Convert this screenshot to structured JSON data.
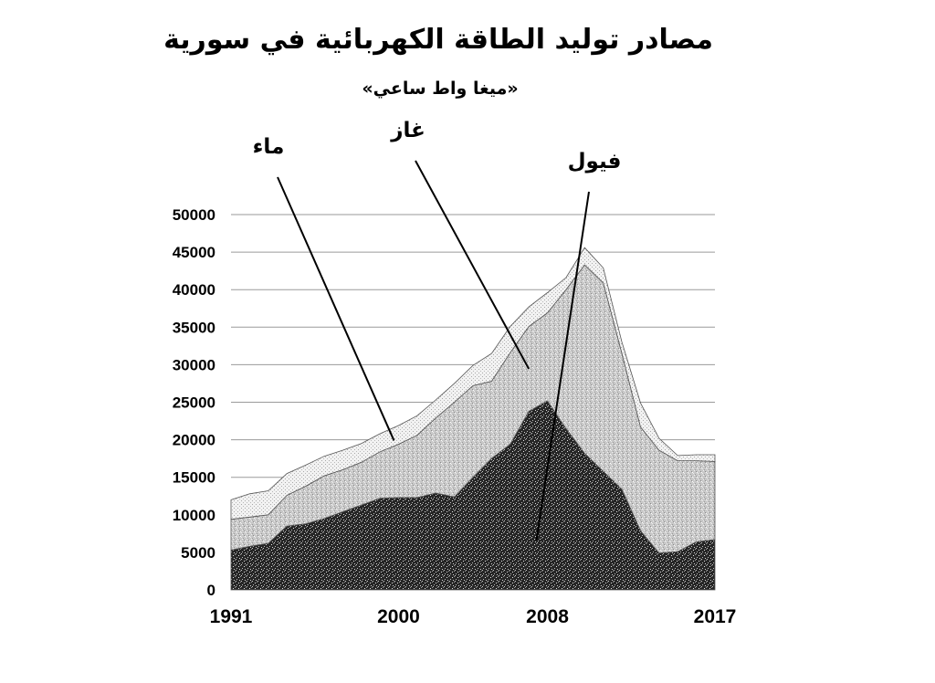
{
  "chart_data": {
    "type": "area",
    "stacked": true,
    "title": "مصادر توليد الطاقة الكهربائية في سورية",
    "subtitle": "«ميغا واط ساعي»",
    "xlabel": "",
    "ylabel": "",
    "ylim": [
      0,
      50000
    ],
    "xlim": [
      1991,
      2017
    ],
    "yticks": [
      0,
      5000,
      10000,
      15000,
      20000,
      25000,
      30000,
      35000,
      40000,
      45000,
      50000
    ],
    "xtick_labels": [
      "1991",
      "2000",
      "2008",
      "2017"
    ],
    "grid": true,
    "legend": "none",
    "x": [
      1991,
      1992,
      1993,
      1994,
      1995,
      1996,
      1997,
      1998,
      1999,
      2000,
      2001,
      2002,
      2003,
      2004,
      2005,
      2006,
      2007,
      2008,
      2009,
      2010,
      2011,
      2012,
      2013,
      2014,
      2015,
      2016,
      2017
    ],
    "series": [
      {
        "name": "فيول",
        "pattern": "dark",
        "values": [
          5300,
          5800,
          6200,
          8500,
          8800,
          9500,
          10400,
          11300,
          12200,
          12300,
          12300,
          12900,
          12400,
          15000,
          17500,
          19400,
          23800,
          25200,
          21500,
          18200,
          15800,
          13400,
          7900,
          4900,
          5100,
          6400,
          6700
        ]
      },
      {
        "name": "غاز",
        "pattern": "light",
        "values": [
          4100,
          3900,
          3800,
          4100,
          5000,
          5700,
          5600,
          5700,
          6200,
          7100,
          8300,
          10000,
          12600,
          12200,
          10300,
          12200,
          11300,
          11700,
          18500,
          25100,
          25100,
          18100,
          13800,
          13700,
          12100,
          10800,
          10400
        ]
      },
      {
        "name": "ماء",
        "pattern": "dotted",
        "values": [
          2600,
          3100,
          3200,
          2900,
          2800,
          2600,
          2600,
          2500,
          2400,
          2500,
          2600,
          2400,
          2500,
          2700,
          3700,
          3500,
          2600,
          2700,
          1600,
          2300,
          2000,
          1500,
          3200,
          1600,
          700,
          800,
          900
        ]
      }
    ],
    "annotations": [
      {
        "text": "ماء",
        "series": "ماء",
        "x": 2000
      },
      {
        "text": "غاز",
        "series": "غاز",
        "x": 2007
      },
      {
        "text": "فيول",
        "series": "فيول",
        "x": 2008
      }
    ]
  }
}
